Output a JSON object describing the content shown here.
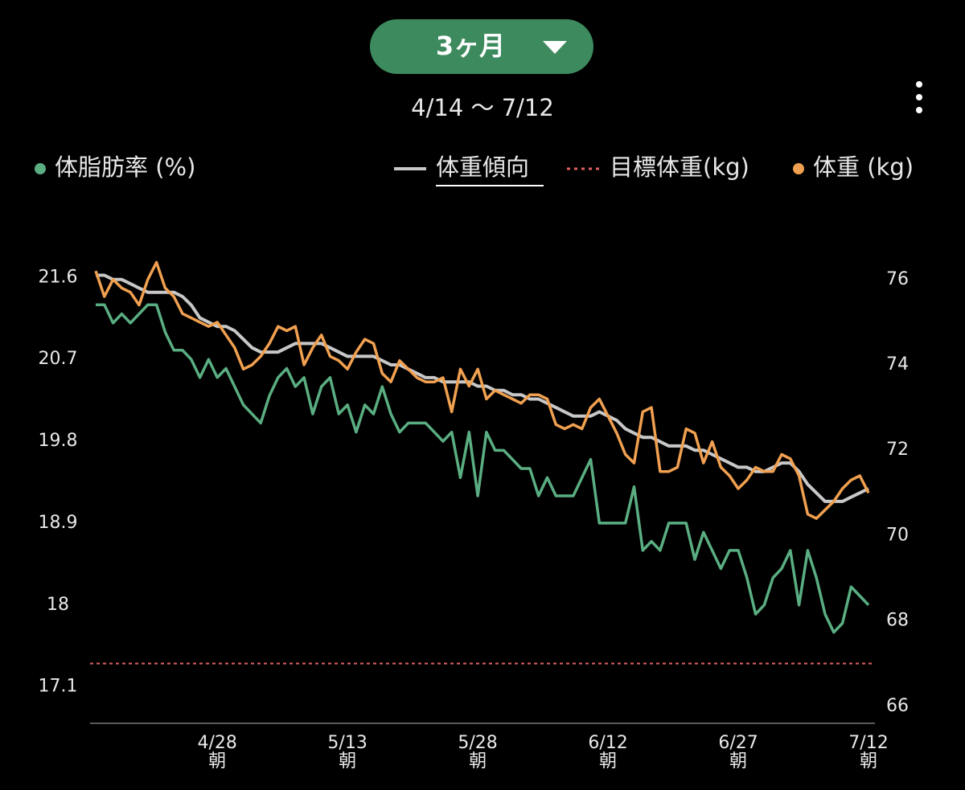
{
  "chart_data": {
    "type": "line",
    "period": "3ヶ月",
    "date_range": "4/14 〜 7/12",
    "x": [
      "4/14",
      "4/15",
      "4/16",
      "4/17",
      "4/18",
      "4/19",
      "4/20",
      "4/21",
      "4/22",
      "4/23",
      "4/24",
      "4/25",
      "4/26",
      "4/27",
      "4/28",
      "4/29",
      "4/30",
      "5/1",
      "5/2",
      "5/3",
      "5/4",
      "5/5",
      "5/6",
      "5/7",
      "5/8",
      "5/9",
      "5/10",
      "5/11",
      "5/12",
      "5/13",
      "5/14",
      "5/15",
      "5/16",
      "5/17",
      "5/18",
      "5/19",
      "5/20",
      "5/21",
      "5/22",
      "5/23",
      "5/24",
      "5/25",
      "5/26",
      "5/27",
      "5/28",
      "5/29",
      "5/30",
      "5/31",
      "6/1",
      "6/2",
      "6/3",
      "6/4",
      "6/5",
      "6/6",
      "6/7",
      "6/8",
      "6/9",
      "6/10",
      "6/11",
      "6/12",
      "6/13",
      "6/14",
      "6/15",
      "6/16",
      "6/17",
      "6/18",
      "6/19",
      "6/20",
      "6/21",
      "6/22",
      "6/23",
      "6/24",
      "6/25",
      "6/26",
      "6/27",
      "6/28",
      "6/29",
      "6/30",
      "7/1",
      "7/2",
      "7/3",
      "7/4",
      "7/5",
      "7/6",
      "7/7",
      "7/8",
      "7/9",
      "7/10",
      "7/11",
      "7/12"
    ],
    "xlim": [
      "4/14",
      "7/12"
    ],
    "xticks": [
      "4/28",
      "5/13",
      "5/28",
      "6/12",
      "6/27",
      "7/12"
    ],
    "xtick_sublabel": "朝",
    "ylim": [
      16.7,
      22.0
    ],
    "yticks": [
      21.6,
      20.7,
      19.8,
      18.9,
      18,
      17.1
    ],
    "y2lim": [
      65.6,
      76.9
    ],
    "y2ticks": [
      76,
      74,
      72,
      70,
      68,
      66
    ],
    "series": [
      {
        "name": "体脂肪率 (%)",
        "color": "#5aae82",
        "axis": "y",
        "values": [
          21.3,
          21.3,
          21.1,
          21.2,
          21.1,
          21.2,
          21.3,
          21.3,
          21.0,
          20.8,
          20.8,
          20.7,
          20.5,
          20.7,
          20.5,
          20.6,
          20.4,
          20.2,
          20.1,
          20.0,
          20.3,
          20.5,
          20.6,
          20.4,
          20.5,
          20.1,
          20.4,
          20.5,
          20.1,
          20.2,
          19.9,
          20.2,
          20.1,
          20.4,
          20.1,
          19.9,
          20.0,
          20.0,
          20.0,
          19.9,
          19.8,
          19.9,
          19.4,
          19.9,
          19.2,
          19.9,
          19.7,
          19.7,
          19.6,
          19.5,
          19.5,
          19.2,
          19.4,
          19.2,
          19.2,
          19.2,
          19.4,
          19.6,
          18.9,
          18.9,
          18.9,
          18.9,
          19.3,
          18.6,
          18.7,
          18.6,
          18.9,
          18.9,
          18.9,
          18.5,
          18.8,
          18.6,
          18.4,
          18.6,
          18.6,
          18.3,
          17.9,
          18.0,
          18.3,
          18.4,
          18.6,
          18.0,
          18.6,
          18.3,
          17.9,
          17.7,
          17.8,
          18.2,
          18.1,
          18.0
        ]
      },
      {
        "name": "体重傾向",
        "color": "#c8c8c8",
        "axis": "y2",
        "values": [
          76.1,
          76.1,
          76.0,
          76.0,
          75.9,
          75.8,
          75.7,
          75.7,
          75.7,
          75.7,
          75.6,
          75.4,
          75.1,
          75.0,
          74.9,
          74.9,
          74.8,
          74.6,
          74.4,
          74.3,
          74.3,
          74.3,
          74.4,
          74.5,
          74.5,
          74.5,
          74.5,
          74.4,
          74.3,
          74.2,
          74.2,
          74.2,
          74.2,
          74.1,
          74.0,
          74.0,
          73.9,
          73.8,
          73.7,
          73.7,
          73.6,
          73.6,
          73.6,
          73.6,
          73.5,
          73.5,
          73.4,
          73.4,
          73.3,
          73.3,
          73.2,
          73.2,
          73.1,
          73.0,
          72.9,
          72.8,
          72.8,
          72.8,
          72.9,
          72.8,
          72.7,
          72.5,
          72.4,
          72.3,
          72.3,
          72.2,
          72.1,
          72.1,
          72.1,
          72.0,
          72.0,
          71.9,
          71.8,
          71.7,
          71.6,
          71.6,
          71.5,
          71.5,
          71.6,
          71.7,
          71.7,
          71.5,
          71.2,
          71.0,
          70.8,
          70.8,
          70.8,
          70.9,
          71.0,
          71.1
        ]
      },
      {
        "name": "体重 (kg)",
        "color": "#f0a050",
        "axis": "y2",
        "values": [
          76.2,
          75.6,
          76.0,
          75.8,
          75.7,
          75.4,
          76.0,
          76.4,
          75.8,
          75.6,
          75.2,
          75.1,
          75.0,
          74.9,
          75.0,
          74.7,
          74.4,
          73.9,
          74.0,
          74.2,
          74.5,
          74.9,
          74.8,
          74.9,
          74.0,
          74.4,
          74.7,
          74.2,
          74.1,
          73.9,
          74.3,
          74.6,
          74.5,
          73.8,
          73.6,
          74.1,
          73.9,
          73.7,
          73.6,
          73.6,
          73.7,
          72.9,
          73.9,
          73.5,
          73.9,
          73.2,
          73.4,
          73.3,
          73.2,
          73.1,
          73.3,
          73.3,
          73.2,
          72.6,
          72.5,
          72.6,
          72.5,
          73.0,
          73.2,
          72.8,
          72.4,
          71.9,
          71.7,
          72.9,
          73.0,
          71.5,
          71.5,
          71.6,
          72.5,
          72.4,
          71.7,
          72.2,
          71.6,
          71.4,
          71.1,
          71.3,
          71.6,
          71.5,
          71.5,
          71.9,
          71.8,
          71.4,
          70.5,
          70.4,
          70.6,
          70.8,
          71.1,
          71.3,
          71.4,
          71.0
        ]
      }
    ],
    "target_line": {
      "name": "目標体重(kg)",
      "value": 67,
      "color": "#e06060",
      "axis": "y2"
    }
  }
}
